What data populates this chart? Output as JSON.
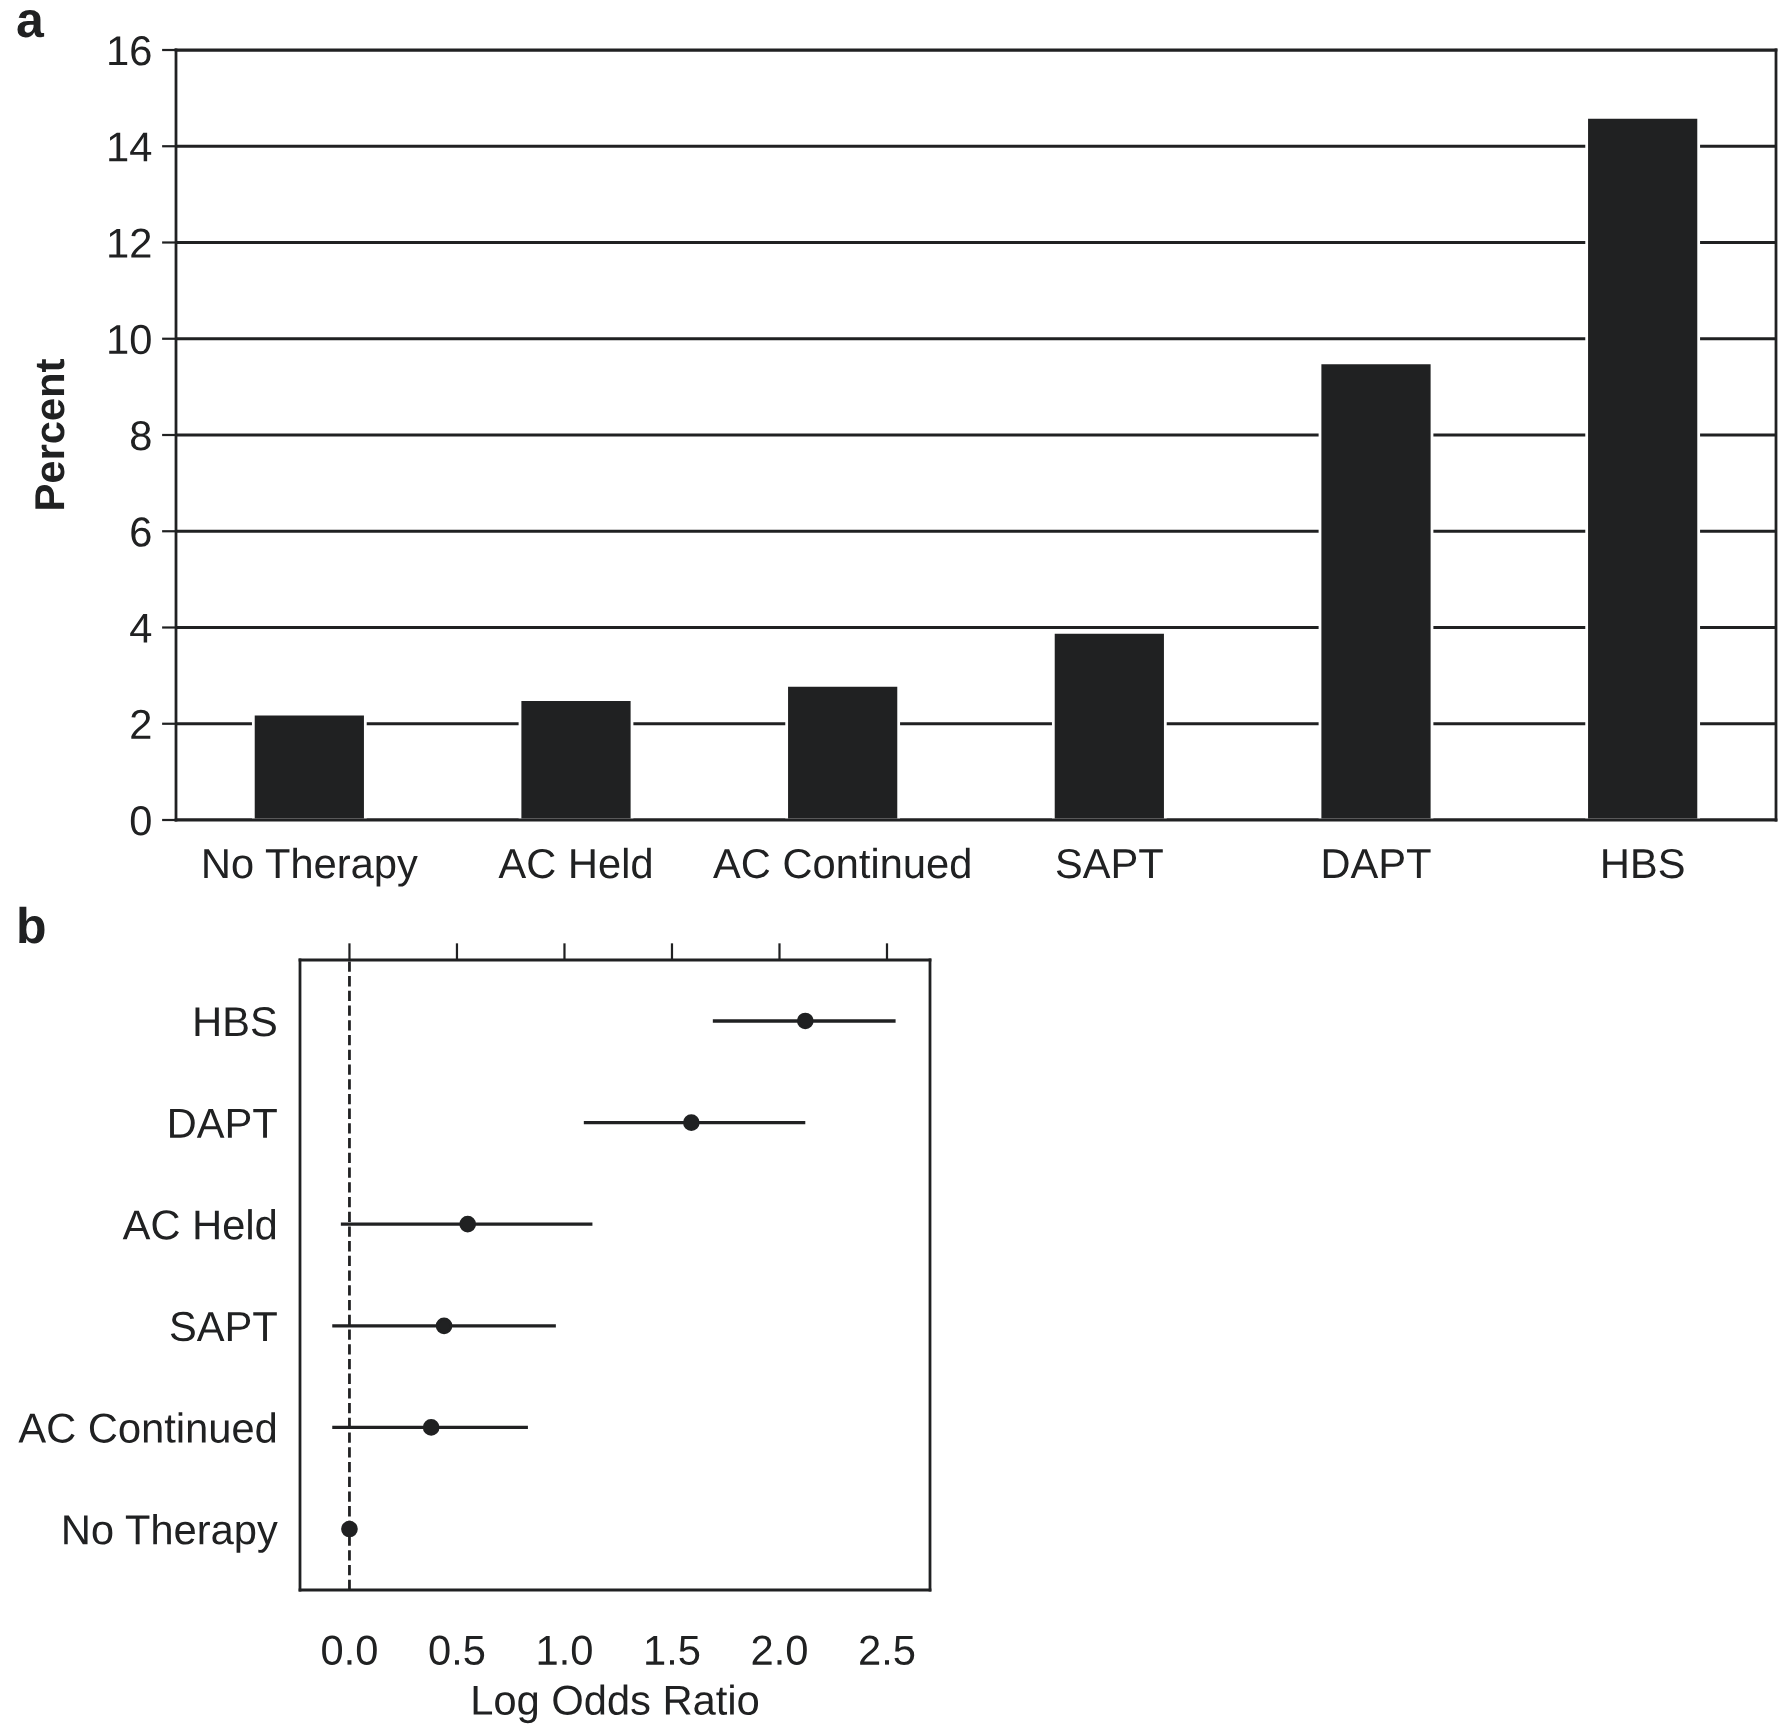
{
  "chart_data": [
    {
      "type": "bar",
      "categories": [
        "No Therapy",
        "AC Held",
        "AC Continued",
        "SAPT",
        "DAPT",
        "HBS"
      ],
      "values": [
        2.2,
        2.5,
        2.8,
        3.9,
        9.5,
        14.6
      ],
      "color": "#202122",
      "ylabel": "Percent",
      "ylim": [
        0,
        16
      ],
      "yticks": [
        0,
        2,
        4,
        6,
        8,
        10,
        12,
        14,
        16
      ],
      "grid": "y",
      "annotations": [
        "a"
      ]
    },
    {
      "type": "scatter",
      "orientation": "horizontal",
      "categories": [
        "HBS",
        "DAPT",
        "AC Held",
        "SAPT",
        "AC Continued",
        "No Therapy"
      ],
      "values": [
        2.12,
        1.59,
        0.55,
        0.44,
        0.38,
        0
      ],
      "errors": [
        [
          1.69,
          2.54
        ],
        [
          1.09,
          2.12
        ],
        [
          -0.04,
          1.13
        ],
        [
          -0.08,
          0.96
        ],
        [
          -0.08,
          0.83
        ],
        null
      ],
      "color": "#202122",
      "marker": "circle",
      "xlabel": "Log Odds Ratio",
      "xlim": [
        -0.23,
        2.7
      ],
      "xticks": [
        {
          "value": 0,
          "label": "0.0"
        },
        {
          "value": 0.5,
          "label": "0.5"
        },
        {
          "value": 1,
          "label": "1.0"
        },
        {
          "value": 1.5,
          "label": "1.5"
        },
        {
          "value": 2,
          "label": "2.0"
        },
        {
          "value": 2.5,
          "label": "2.5"
        }
      ],
      "ref_lines": [
        {
          "axis": "x",
          "value": 0,
          "line_style": "dashed",
          "color": "#202122"
        }
      ],
      "grid": false,
      "annotations": [
        "b"
      ]
    }
  ]
}
